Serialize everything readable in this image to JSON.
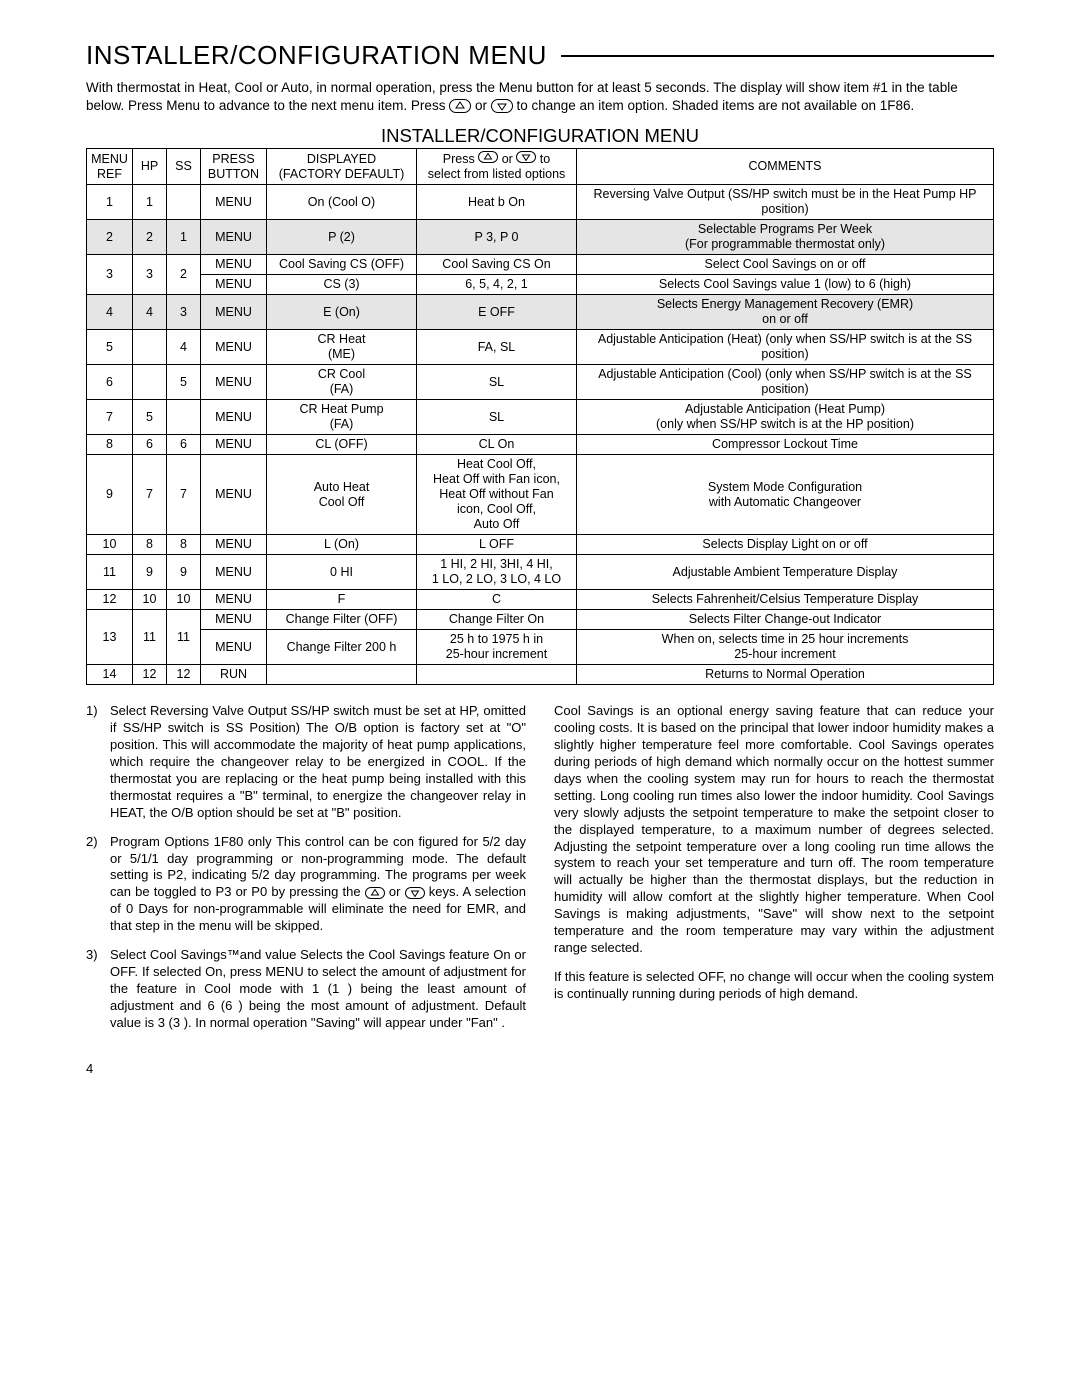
{
  "title": "INSTALLER/CONFIGURATION MENU",
  "intro_a": "With thermostat in Heat, Cool or Auto, in normal operation, press the Menu button for at least 5 seconds. The display will show item #1 in the table below. Press Menu to advance to the next menu item. Press ",
  "intro_b": " or ",
  "intro_c": " to change an item option. Shaded items are not available on 1F86.",
  "table_heading": "INSTALLER/CONFIGURATION MENU",
  "headers": {
    "c0": "MENU\nREF",
    "c1": "HP",
    "c2": "SS",
    "c3": "PRESS\nBUTTON",
    "c4": "DISPLAYED\n(FACTORY DEFAULT)",
    "c5a": "Press ",
    "c5b": " or ",
    "c5c": " to\nselect from listed options",
    "c6": "COMMENTS"
  },
  "rows": [
    {
      "ref": "1",
      "hp": "1",
      "ss": "",
      "btn": "MENU",
      "disp": "On (Cool O)",
      "opt": "Heat b On",
      "com": "Reversing Valve Output (SS/HP switch must be in the Heat Pump HP position)",
      "shaded": false
    },
    {
      "ref": "2",
      "hp": "2",
      "ss": "1",
      "btn": "MENU",
      "disp": "P (2)",
      "opt": "P 3, P 0",
      "com": "Selectable Programs Per Week\n(For programmable thermostat only)",
      "shaded": true
    },
    {
      "ref": "3",
      "hp": "3",
      "ss": "2",
      "span": 2,
      "sub": [
        {
          "btn": "MENU",
          "disp": "Cool Saving CS (OFF)",
          "opt": "Cool Saving CS On",
          "com": "Select Cool Savings on or off",
          "shaded": false
        },
        {
          "btn": "MENU",
          "disp": "CS (3)",
          "opt": "6, 5, 4, 2, 1",
          "com": "Selects Cool Savings value 1 (low) to 6 (high)",
          "shaded": false
        }
      ]
    },
    {
      "ref": "4",
      "hp": "4",
      "ss": "3",
      "btn": "MENU",
      "disp": "E (On)",
      "opt": "E OFF",
      "com": "Selects Energy Management Recovery (EMR)\non or off",
      "shaded": true
    },
    {
      "ref": "5",
      "hp": "",
      "ss": "4",
      "btn": "MENU",
      "disp": "CR Heat\n(ME)",
      "opt": "FA, SL",
      "com": "Adjustable Anticipation (Heat) (only when SS/HP switch is at the SS position)",
      "shaded": false
    },
    {
      "ref": "6",
      "hp": "",
      "ss": "5",
      "btn": "MENU",
      "disp": "CR Cool\n(FA)",
      "opt": "SL",
      "com": "Adjustable Anticipation (Cool) (only when SS/HP switch is at the SS position)",
      "shaded": false
    },
    {
      "ref": "7",
      "hp": "5",
      "ss": "",
      "btn": "MENU",
      "disp": "CR Heat Pump\n(FA)",
      "opt": "SL",
      "com": "Adjustable Anticipation (Heat Pump)\n(only when SS/HP switch is at the HP position)",
      "shaded": false
    },
    {
      "ref": "8",
      "hp": "6",
      "ss": "6",
      "btn": "MENU",
      "disp": "CL (OFF)",
      "opt": "CL On",
      "com": "Compressor Lockout Time",
      "shaded": false
    },
    {
      "ref": "9",
      "hp": "7",
      "ss": "7",
      "btn": "MENU",
      "disp": "Auto Heat\nCool Off",
      "opt": "Heat Cool Off,\nHeat Off with Fan icon,\nHeat Off without Fan\nicon, Cool Off,\nAuto Off",
      "com": "System Mode Configuration\nwith Automatic Changeover",
      "shaded": false
    },
    {
      "ref": "10",
      "hp": "8",
      "ss": "8",
      "btn": "MENU",
      "disp": "L (On)",
      "opt": "L OFF",
      "com": "Selects Display Light on or off",
      "shaded": false
    },
    {
      "ref": "11",
      "hp": "9",
      "ss": "9",
      "btn": "MENU",
      "disp": "0 HI",
      "opt": "1 HI, 2 HI, 3HI, 4 HI,\n1 LO, 2 LO, 3 LO, 4 LO",
      "com": "Adjustable Ambient Temperature Display",
      "shaded": false
    },
    {
      "ref": "12",
      "hp": "10",
      "ss": "10",
      "btn": "MENU",
      "disp": "F",
      "opt": "C",
      "com": "Selects Fahrenheit/Celsius Temperature Display",
      "shaded": false
    },
    {
      "ref": "13",
      "hp": "11",
      "ss": "11",
      "span": 2,
      "sub": [
        {
          "btn": "MENU",
          "disp": "Change Filter (OFF)",
          "opt": "Change Filter On",
          "com": "Selects Filter Change-out Indicator",
          "shaded": false
        },
        {
          "btn": "MENU",
          "disp": "Change Filter 200 h",
          "opt": "25 h to 1975 h in\n25-hour increment",
          "com": "When on, selects time in 25 hour increments\n25-hour increment",
          "shaded": false
        }
      ]
    },
    {
      "ref": "14",
      "hp": "12",
      "ss": "12",
      "btn": "RUN",
      "disp": "",
      "opt": "",
      "com": "Returns to Normal Operation",
      "shaded": false
    }
  ],
  "notes_left": [
    {
      "n": "1)",
      "body": "Select Reversing Valve Output    SS/HP switch must be set at HP, omitted if SS/HP switch is SS Position)    The O/B option is factory set at \"O\" position. This will accommodate the majority of heat pump applications, which require the changeover relay to be energized in COOL. If the thermostat you are replacing or the heat pump being installed with this thermostat requires a \"B\" terminal, to energize the changeover relay in HEAT, the O/B option should be set at \"B\" position."
    },
    {
      "n": "2)",
      "body_a": "Program Options   1F80 only   This control can be con  figured for 5/2 day or 5/1/1 day programming or non-programming mode. The default setting is P2, indicating 5/2 day programming. The programs per week can be toggled to P3 or P0 by pressing the ",
      "body_b": " or ",
      "body_c": " keys. A selection of 0 Days for non-programmable will eliminate the need for EMR, and that step in the menu will be skipped."
    },
    {
      "n": "3)",
      "body": "Select Cool Savings™and value        Selects the Cool Savings feature On or OFF. If selected On, press MENU to select the amount of adjustment for the feature in Cool mode with 1 (1 ) being the least amount of adjustment and 6 (6 ) being the most amount of adjustment. Default value is 3 (3 ). In normal operation  \"Saving\"  will appear under \"Fan\" ."
    }
  ],
  "notes_right": [
    "Cool Savings is an optional energy saving feature that can reduce your cooling costs. It is based on the principal that lower indoor humidity makes a slightly higher temperature feel more comfortable. Cool Savings operates during periods of high demand which normally occur on the hottest summer days when the cooling system may run for hours to reach the thermostat setting. Long cooling run times also lower the indoor humidity. Cool Savings very slowly adjusts the setpoint temperature to make the setpoint closer to the displayed temperature, to a maximum number of degrees selected. Adjusting the setpoint temperature over a long cooling run time allows the system to reach your set temperature and turn off. The room temperature will actually be higher than the thermostat displays, but the reduction in humidity will allow comfort at the slightly higher temperature. When Cool Savings is making adjustments, \"Save\" will show next to the setpoint temperature and the room temperature may vary within the adjustment range selected.",
    "If this feature is selected OFF, no change will occur when the cooling system is continually running during periods of high demand."
  ],
  "page_number": "4"
}
